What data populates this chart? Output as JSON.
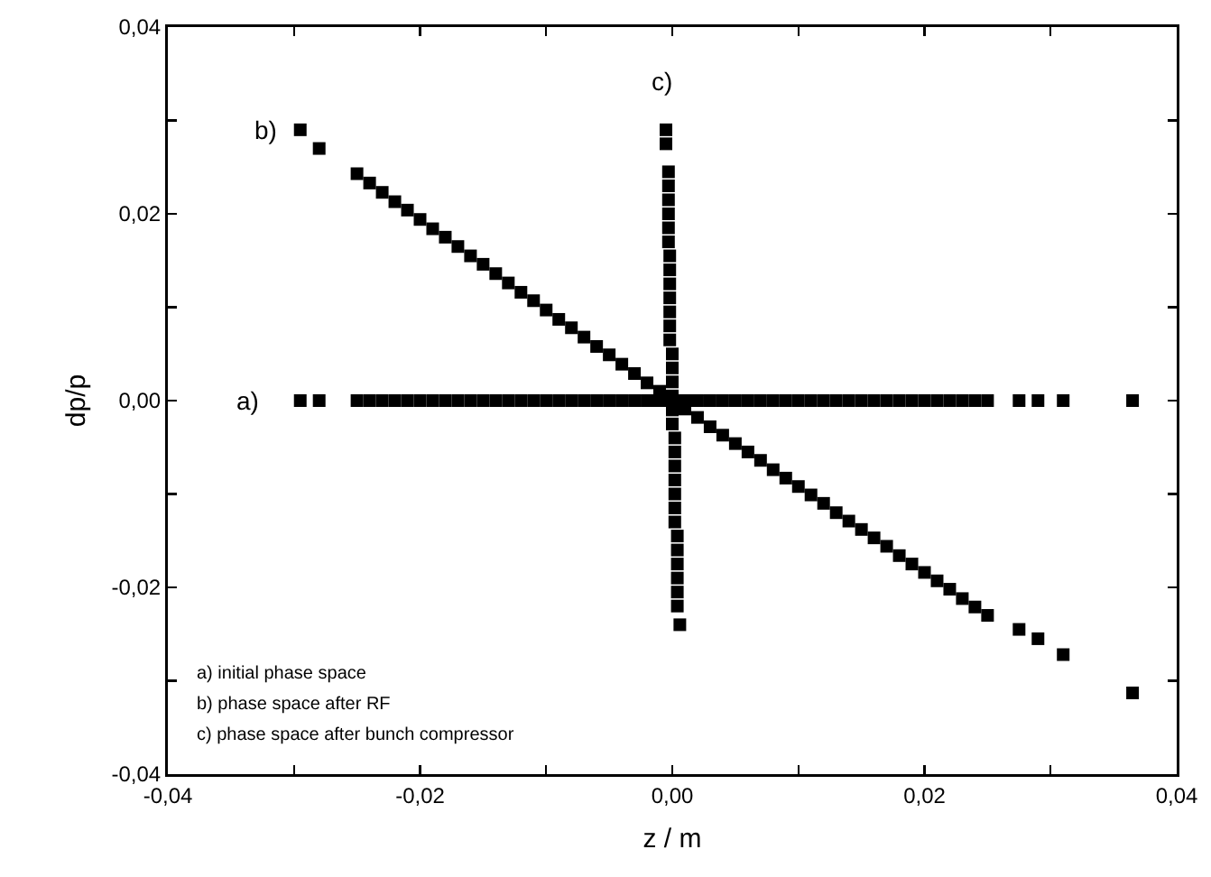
{
  "chart_data": {
    "type": "scatter",
    "xlabel": "z / m",
    "ylabel": "dp/p",
    "xlim": [
      -0.04,
      0.04
    ],
    "ylim": [
      -0.04,
      0.04
    ],
    "xticks": [
      {
        "value": -0.04,
        "label": "-0,04"
      },
      {
        "value": -0.03,
        "label": null
      },
      {
        "value": -0.02,
        "label": "-0,02"
      },
      {
        "value": -0.01,
        "label": null
      },
      {
        "value": 0,
        "label": "0,00"
      },
      {
        "value": 0.01,
        "label": null
      },
      {
        "value": 0.02,
        "label": "0,02"
      },
      {
        "value": 0.03,
        "label": null
      },
      {
        "value": 0.04,
        "label": "0,04"
      }
    ],
    "yticks": [
      {
        "value": -0.04,
        "label": "-0,04"
      },
      {
        "value": -0.03,
        "label": null
      },
      {
        "value": -0.02,
        "label": "-0,02"
      },
      {
        "value": -0.01,
        "label": null
      },
      {
        "value": 0,
        "label": "0,00"
      },
      {
        "value": 0.01,
        "label": null
      },
      {
        "value": 0.02,
        "label": "0,02"
      },
      {
        "value": 0.03,
        "label": null
      },
      {
        "value": 0.04,
        "label": "0,04"
      }
    ],
    "grid": false,
    "marker": "square",
    "series": [
      {
        "color": "#000000",
        "x": [
          -0.0295,
          -0.028,
          -0.025,
          -0.024,
          -0.023,
          -0.022,
          -0.021,
          -0.02,
          -0.019,
          -0.018,
          -0.017,
          -0.016,
          -0.015,
          -0.014,
          -0.013,
          -0.012,
          -0.011,
          -0.01,
          -0.009,
          -0.008,
          -0.007,
          -0.006,
          -0.005,
          -0.004,
          -0.003,
          -0.002,
          -0.001,
          0,
          0.001,
          0.002,
          0.003,
          0.004,
          0.005,
          0.006,
          0.007,
          0.008,
          0.009,
          0.01,
          0.011,
          0.012,
          0.013,
          0.014,
          0.015,
          0.016,
          0.017,
          0.018,
          0.019,
          0.02,
          0.021,
          0.022,
          0.023,
          0.024,
          0.025,
          0.0275,
          0.029,
          0.031,
          0.0365
        ],
        "values": [
          0,
          0,
          0,
          0,
          0,
          0,
          0,
          0,
          0,
          0,
          0,
          0,
          0,
          0,
          0,
          0,
          0,
          0,
          0,
          0,
          0,
          0,
          0,
          0,
          0,
          0,
          0,
          0,
          0,
          0,
          0,
          0,
          0,
          0,
          0,
          0,
          0,
          0,
          0,
          0,
          0,
          0,
          0,
          0,
          0,
          0,
          0,
          0,
          0,
          0,
          0,
          0,
          0,
          0,
          0,
          0,
          0
        ]
      },
      {
        "color": "#000000",
        "x": [
          -0.0295,
          -0.028,
          -0.025,
          -0.024,
          -0.023,
          -0.022,
          -0.021,
          -0.02,
          -0.019,
          -0.018,
          -0.017,
          -0.016,
          -0.015,
          -0.014,
          -0.013,
          -0.012,
          -0.011,
          -0.01,
          -0.009,
          -0.008,
          -0.007,
          -0.006,
          -0.005,
          -0.004,
          -0.003,
          -0.002,
          -0.001,
          0.001,
          0.002,
          0.003,
          0.004,
          0.005,
          0.006,
          0.007,
          0.008,
          0.009,
          0.01,
          0.011,
          0.012,
          0.013,
          0.014,
          0.015,
          0.016,
          0.017,
          0.018,
          0.019,
          0.02,
          0.021,
          0.022,
          0.023,
          0.024,
          0.025,
          0.0275,
          0.029,
          0.031,
          0.0365
        ],
        "values": [
          0.029,
          0.027,
          0.0243,
          0.0233,
          0.0223,
          0.0213,
          0.0204,
          0.0194,
          0.0184,
          0.0175,
          0.0165,
          0.0155,
          0.0146,
          0.0136,
          0.0126,
          0.0116,
          0.0107,
          0.0097,
          0.0087,
          0.0078,
          0.0068,
          0.0058,
          0.0049,
          0.0039,
          0.0029,
          0.0019,
          0.001,
          -0.0009,
          -0.0018,
          -0.0028,
          -0.0037,
          -0.0046,
          -0.0055,
          -0.0064,
          -0.0074,
          -0.0083,
          -0.0092,
          -0.0101,
          -0.011,
          -0.012,
          -0.0129,
          -0.0138,
          -0.0147,
          -0.0156,
          -0.0166,
          -0.0175,
          -0.0184,
          -0.0193,
          -0.0202,
          -0.0212,
          -0.0221,
          -0.023,
          -0.0245,
          -0.0255,
          -0.0272,
          -0.0313
        ]
      },
      {
        "color": "#000000",
        "x": [
          -0.0005,
          -0.0005,
          -0.0003,
          -0.0003,
          -0.0003,
          -0.0003,
          -0.0003,
          -0.0003,
          -0.0002,
          -0.0002,
          -0.0002,
          -0.0002,
          -0.0002,
          -0.0002,
          -0.0002,
          0,
          0,
          0,
          0,
          0,
          0,
          0.0002,
          0.0002,
          0.0002,
          0.0002,
          0.0002,
          0.0002,
          0.0002,
          0.0004,
          0.0004,
          0.0004,
          0.0004,
          0.0004,
          0.0004,
          0.0006
        ],
        "values": [
          0.029,
          0.0275,
          0.0245,
          0.023,
          0.0215,
          0.02,
          0.0185,
          0.017,
          0.0155,
          0.014,
          0.0125,
          0.011,
          0.0095,
          0.008,
          0.0065,
          0.005,
          0.0035,
          0.002,
          0.0005,
          -0.001,
          -0.0025,
          -0.004,
          -0.0055,
          -0.007,
          -0.0085,
          -0.01,
          -0.0115,
          -0.013,
          -0.0145,
          -0.016,
          -0.0175,
          -0.019,
          -0.0205,
          -0.022,
          -0.024
        ]
      }
    ],
    "annotations": [
      "a)",
      "b)",
      "c)",
      "a) initial phase space",
      "b) phase space after RF",
      "c) phase space after bunch compressor"
    ]
  }
}
